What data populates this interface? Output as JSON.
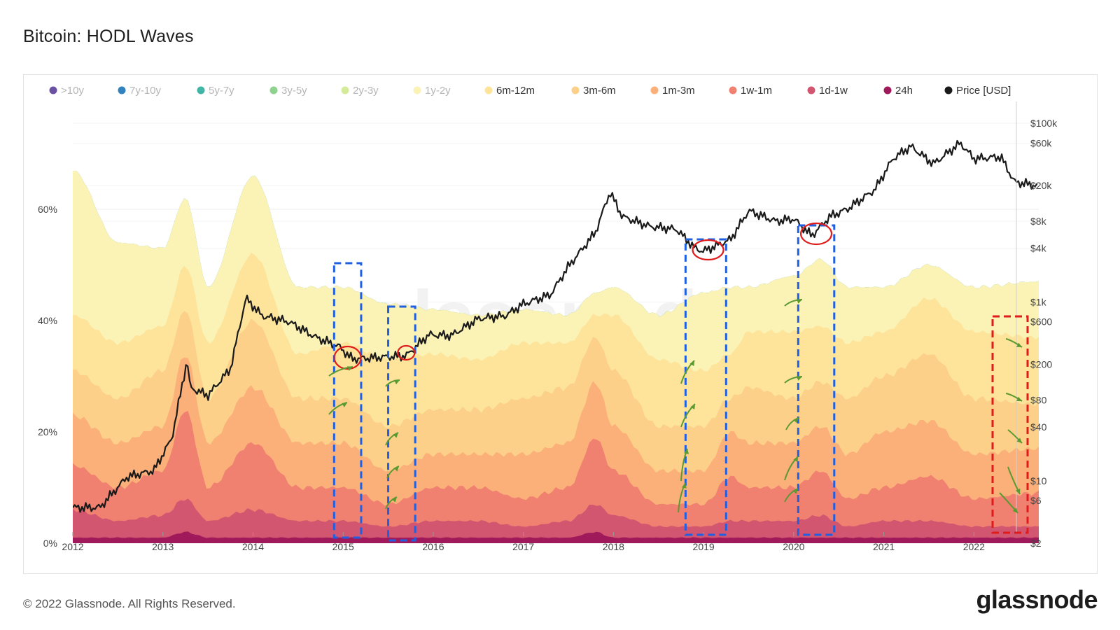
{
  "title": "Bitcoin: HODL Waves",
  "footer": {
    "copyright": "© 2022 Glassnode. All Rights Reserved.",
    "brand": "glassnode"
  },
  "watermark": "glassnode",
  "chart_data": {
    "type": "area",
    "stacked": true,
    "y_scale_left": "linear",
    "y_scale_right": "log",
    "grid": true,
    "legend_position": "top",
    "x": [
      2012,
      2012.5,
      2013,
      2013.25,
      2013.5,
      2014,
      2014.5,
      2015,
      2015.5,
      2016,
      2016.5,
      2017,
      2017.5,
      2017.8,
      2018,
      2018.5,
      2019,
      2019.3,
      2019.5,
      2020,
      2020.3,
      2020.6,
      2021,
      2021.5,
      2022,
      2022.7
    ],
    "x_ticks": [
      "2012",
      "2013",
      "2014",
      "2015",
      "2016",
      "2017",
      "2018",
      "2019",
      "2020",
      "2021",
      "2022"
    ],
    "y_ticks_left": [
      "0%",
      "20%",
      "40%",
      "60%"
    ],
    "y_ticks_right": [
      "$2",
      "$6",
      "$10",
      "$40",
      "$80",
      "$200",
      "$600",
      "$1k",
      "$4k",
      "$8k",
      "$20k",
      "$60k",
      "$100k"
    ],
    "series": [
      {
        "name": ">10y",
        "color": "#6a51a3",
        "values": [
          0,
          0,
          0,
          0,
          0,
          0,
          0,
          0,
          0,
          0,
          0,
          0,
          0,
          0,
          0,
          0,
          0,
          0,
          0,
          0,
          0,
          0,
          0,
          0,
          0,
          0
        ]
      },
      {
        "name": "7y-10y",
        "color": "#3182bd",
        "values": [
          0,
          0,
          0,
          0,
          0,
          0,
          0,
          0,
          0,
          0,
          0,
          0,
          0,
          0,
          0,
          0,
          0,
          0,
          0,
          0,
          0,
          0,
          0,
          0,
          0,
          0
        ]
      },
      {
        "name": "5y-7y",
        "color": "#41b6a6",
        "values": [
          0,
          0,
          0,
          0,
          0,
          0,
          0,
          0,
          0,
          0,
          0,
          0,
          0,
          0,
          0,
          0,
          0,
          0,
          0,
          0,
          0,
          0,
          0,
          0,
          0,
          0
        ]
      },
      {
        "name": "3y-5y",
        "color": "#8fd18f",
        "values": [
          0,
          0,
          0,
          0,
          0,
          0,
          0,
          0,
          0,
          0,
          0,
          0,
          0,
          0,
          0,
          0,
          0,
          0,
          0,
          0,
          0,
          0,
          0,
          0,
          0,
          0
        ]
      },
      {
        "name": "2y-3y",
        "color": "#d4ec9a",
        "values": [
          0,
          0,
          0,
          0,
          0,
          0,
          0,
          0,
          0,
          0,
          0,
          0,
          0,
          0,
          0,
          0,
          0,
          0,
          0,
          0,
          0,
          0,
          0,
          0,
          0,
          0
        ]
      },
      {
        "name": "1y-2y",
        "color": "#fbf3b6",
        "values": [
          26,
          18,
          14,
          12,
          10,
          14,
          12,
          10,
          10,
          8,
          8,
          6,
          5,
          4,
          5,
          8,
          14,
          12,
          8,
          10,
          12,
          10,
          8,
          6,
          8,
          10
        ]
      },
      {
        "name": "6m-12m",
        "color": "#fde49a",
        "values": [
          10,
          10,
          8,
          8,
          10,
          12,
          8,
          10,
          12,
          10,
          9,
          10,
          8,
          4,
          10,
          12,
          10,
          8,
          10,
          12,
          10,
          10,
          8,
          10,
          12,
          12
        ]
      },
      {
        "name": "3m-6m",
        "color": "#fdd08a",
        "values": [
          8,
          8,
          10,
          8,
          8,
          12,
          8,
          8,
          8,
          8,
          8,
          10,
          10,
          8,
          10,
          8,
          8,
          6,
          10,
          8,
          8,
          10,
          10,
          12,
          10,
          8
        ]
      },
      {
        "name": "1m-3m",
        "color": "#fbb07a",
        "values": [
          9,
          8,
          8,
          10,
          8,
          10,
          8,
          8,
          6,
          6,
          6,
          8,
          8,
          10,
          8,
          6,
          6,
          8,
          8,
          8,
          8,
          8,
          10,
          10,
          8,
          8
        ]
      },
      {
        "name": "1w-1m",
        "color": "#f08070",
        "values": [
          8,
          6,
          8,
          16,
          6,
          12,
          6,
          6,
          4,
          6,
          6,
          5,
          6,
          12,
          8,
          4,
          4,
          8,
          6,
          6,
          8,
          5,
          6,
          8,
          5,
          6
        ]
      },
      {
        "name": "1d-1w",
        "color": "#d2566f",
        "values": [
          5,
          3,
          4,
          6,
          3,
          5,
          3,
          3,
          2,
          3,
          3,
          2,
          3,
          5,
          4,
          2,
          2,
          3,
          3,
          3,
          4,
          2,
          3,
          3,
          2,
          2
        ]
      },
      {
        "name": "24h",
        "color": "#a0195a",
        "values": [
          1,
          1,
          1,
          2,
          1,
          1,
          1,
          1,
          1,
          1,
          1,
          1,
          1,
          2,
          1,
          1,
          1,
          1,
          1,
          1,
          1,
          1,
          1,
          1,
          1,
          1
        ]
      }
    ],
    "price": {
      "name": "Price [USD]",
      "color": "#1a1a1a",
      "x": [
        2012,
        2012.3,
        2012.6,
        2012.9,
        2013.1,
        2013.27,
        2013.3,
        2013.5,
        2013.75,
        2013.92,
        2014.1,
        2014.4,
        2014.7,
        2014.95,
        2015.1,
        2015.4,
        2015.7,
        2015.95,
        2016.2,
        2016.5,
        2016.8,
        2017.0,
        2017.3,
        2017.5,
        2017.8,
        2017.96,
        2018.1,
        2018.4,
        2018.7,
        2018.9,
        2019.0,
        2019.3,
        2019.5,
        2019.8,
        2020.0,
        2020.2,
        2020.4,
        2020.6,
        2020.9,
        2021.1,
        2021.3,
        2021.55,
        2021.85,
        2022.0,
        2022.3,
        2022.45,
        2022.7
      ],
      "y": [
        5,
        5,
        11,
        13,
        30,
        230,
        110,
        90,
        180,
        1100,
        700,
        600,
        400,
        320,
        230,
        240,
        250,
        430,
        420,
        650,
        700,
        950,
        1200,
        2500,
        6000,
        17000,
        9000,
        7000,
        6500,
        4000,
        3700,
        5000,
        10500,
        8000,
        8500,
        5500,
        9000,
        11000,
        18000,
        40000,
        55000,
        35000,
        60000,
        40000,
        42000,
        22000,
        20000
      ]
    }
  }
}
